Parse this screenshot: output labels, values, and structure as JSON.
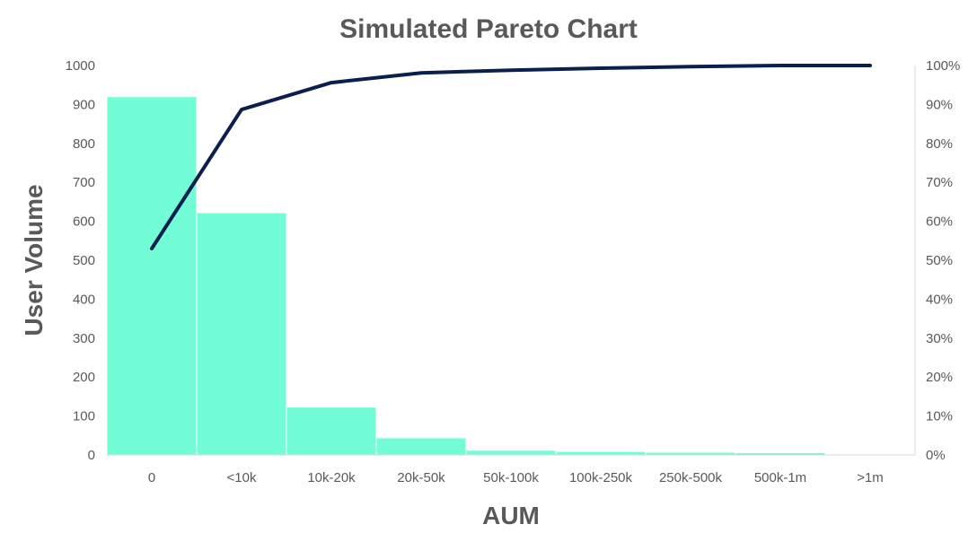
{
  "chart_data": {
    "type": "bar",
    "title": "Simulated Pareto Chart",
    "xlabel": "AUM",
    "ylabel": "User Volume",
    "categories": [
      "0",
      "<10k",
      "10k-20k",
      "20k-50k",
      "50k-100k",
      "100k-250k",
      "250k-500k",
      "500k-1m",
      ">1m"
    ],
    "series": [
      {
        "type": "bar",
        "values": [
          920,
          622,
          123,
          44,
          12,
          9,
          7,
          6,
          1
        ],
        "color": "#73fdd6"
      },
      {
        "type": "line",
        "axis": "right",
        "values": [
          0.53,
          0.887,
          0.956,
          0.981,
          0.988,
          0.993,
          0.997,
          1.0,
          1.0
        ],
        "color": "#0a1f4d"
      }
    ],
    "ylim": [
      0,
      1000
    ],
    "yticks": [
      "0",
      "100",
      "200",
      "300",
      "400",
      "500",
      "600",
      "700",
      "800",
      "900",
      "1000"
    ],
    "y2lim": [
      0,
      1
    ],
    "y2ticks": [
      "0%",
      "10%",
      "20%",
      "30%",
      "40%",
      "50%",
      "60%",
      "70%",
      "80%",
      "90%",
      "100%"
    ],
    "grid": false,
    "legend": "none"
  }
}
